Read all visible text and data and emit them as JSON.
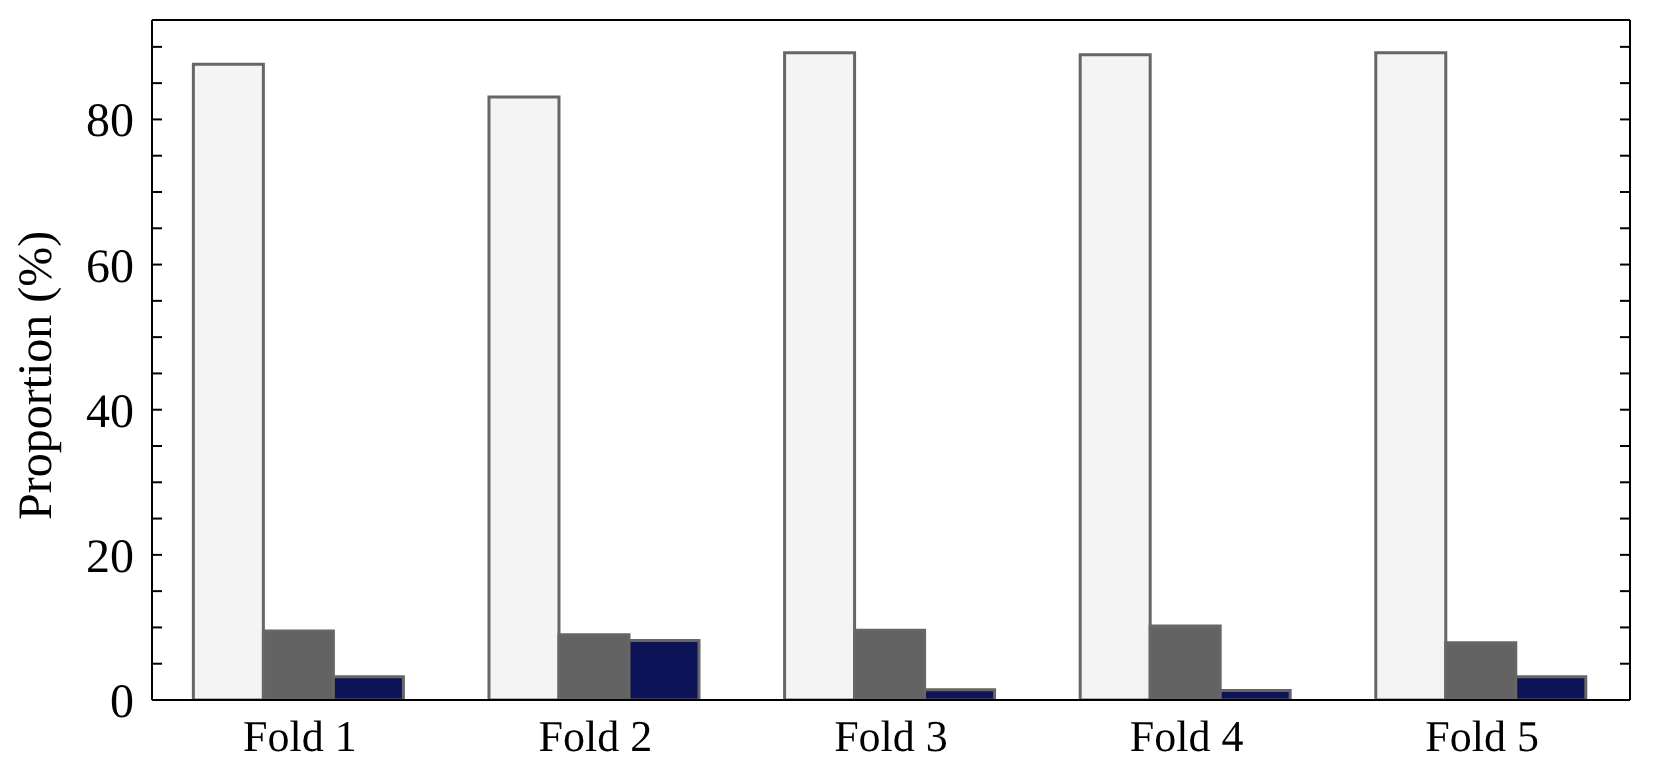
{
  "chart_data": {
    "type": "bar",
    "ylabel": "Proportion (%)",
    "categories": [
      "Fold 1",
      "Fold 2",
      "Fold 3",
      "Fold 4",
      "Fold 5"
    ],
    "series": [
      {
        "color": "#f4f4f4",
        "values": [
          87.6,
          83.1,
          89.2,
          88.9,
          89.2
        ]
      },
      {
        "color": "#636363",
        "values": [
          9.5,
          9.0,
          9.6,
          10.2,
          7.9
        ]
      },
      {
        "color": "#0c1457",
        "values": [
          3.2,
          8.2,
          1.4,
          1.3,
          3.2
        ]
      }
    ],
    "ylim": [
      0,
      93.7
    ],
    "yticks": [
      0,
      {
        "value": 5,
        "label": null
      },
      {
        "value": 10,
        "label": null
      },
      {
        "value": 15,
        "label": null
      },
      20,
      {
        "value": 25,
        "label": null
      },
      {
        "value": 30,
        "label": null
      },
      {
        "value": 35,
        "label": null
      },
      40,
      {
        "value": 45,
        "label": null
      },
      {
        "value": 50,
        "label": null
      },
      {
        "value": 55,
        "label": null
      },
      60,
      {
        "value": 65,
        "label": null
      },
      {
        "value": 70,
        "label": null
      },
      {
        "value": 75,
        "label": null
      },
      80,
      {
        "value": 85,
        "label": null
      },
      {
        "value": 90,
        "label": null
      }
    ],
    "grid": false,
    "legend": false
  }
}
